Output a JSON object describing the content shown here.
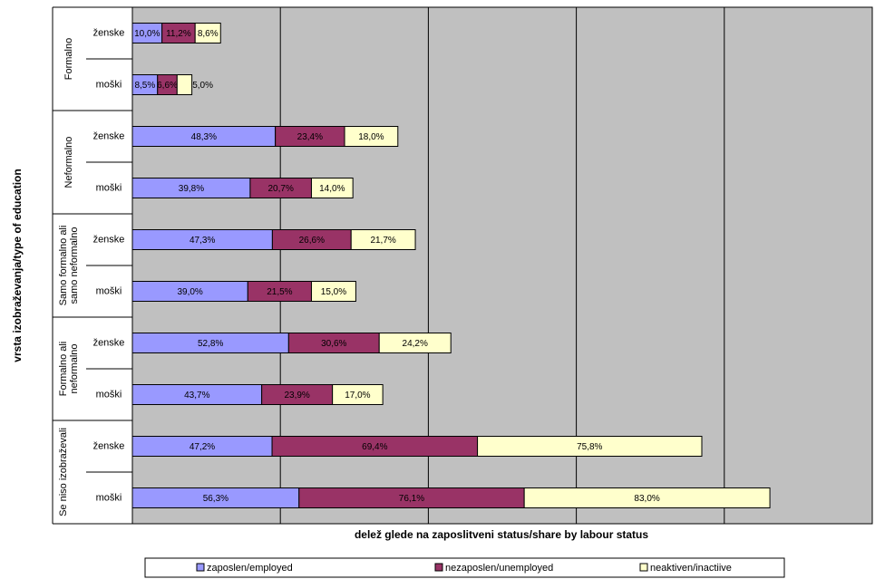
{
  "chart_data": {
    "type": "stacked-bar-horizontal",
    "ylabel": "vrsta izobraževanja/type of education",
    "xlabel": "delež glede na zaposlitveni status/share by labour status",
    "groups": [
      "Formalno",
      "Neformalno",
      "Samo formalno ali samo neformalno",
      "Formalno ali neformalno",
      "Se niso izobraževali"
    ],
    "categories": [
      "ženske",
      "moški",
      "ženske",
      "moški",
      "ženske",
      "moški",
      "ženske",
      "moški",
      "ženske",
      "moški"
    ],
    "xlim": [
      0,
      250
    ],
    "xticks": [
      0,
      50,
      100,
      150,
      200,
      250
    ],
    "grid": true,
    "legend": "bottom",
    "series": [
      {
        "name": "zaposlen/employed",
        "color": "#9999ff",
        "values": [
          10.0,
          8.5,
          48.3,
          39.8,
          47.3,
          39.0,
          52.8,
          43.7,
          47.2,
          56.3
        ],
        "value_labels": [
          "10,0%",
          "8,5%",
          "48,3%",
          "39,8%",
          "47,3%",
          "39,0%",
          "52,8%",
          "43,7%",
          "47,2%",
          "56,3%"
        ]
      },
      {
        "name": "nezaposlen/unemployed",
        "color": "#993366",
        "values": [
          11.2,
          6.6,
          23.4,
          20.7,
          26.6,
          21.5,
          30.6,
          23.9,
          69.4,
          76.1
        ],
        "value_labels": [
          "11,2%",
          "6,6%",
          "23,4%",
          "20,7%",
          "26,6%",
          "21,5%",
          "30,6%",
          "23,9%",
          "69,4%",
          "76,1%"
        ]
      },
      {
        "name": "neaktiven/inactiive",
        "color": "#ffffcc",
        "values": [
          8.6,
          5.0,
          18.0,
          14.0,
          21.7,
          15.0,
          24.2,
          17.0,
          75.8,
          83.0
        ],
        "value_labels": [
          "8,6%",
          "5,0%",
          "18,0%",
          "14,0%",
          "21,7%",
          "15,0%",
          "24,2%",
          "17,0%",
          "75,8%",
          "83,0%"
        ]
      }
    ]
  }
}
